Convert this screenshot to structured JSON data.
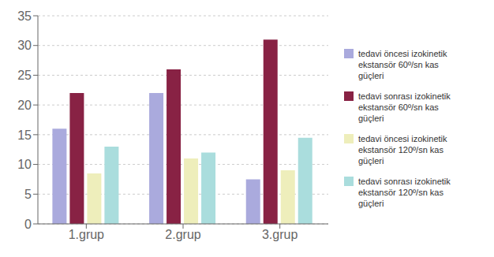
{
  "chart_data": {
    "type": "bar",
    "categories": [
      "1.grup",
      "2.grup",
      "3.grup"
    ],
    "series": [
      {
        "name": "tedavi öncesi izokinetik\nekstansör 60º/sn kas\ngüçleri",
        "color": "#aaaadd",
        "values": [
          16,
          22,
          7.5
        ]
      },
      {
        "name": "tedavi sonrası izokinetik\nekstansör 60º/sn kas\ngüçleri",
        "color": "#882244",
        "values": [
          22,
          26,
          31
        ]
      },
      {
        "name": "tedavi öncesi izokinetik\nekstansör 120º/sn kas\ngüçleri",
        "color": "#eeeebb",
        "values": [
          8.5,
          11,
          9
        ]
      },
      {
        "name": "tedavi sonrası izokinetik\nekstansör 120º/sn kas\ngüçleri",
        "color": "#aadddd",
        "values": [
          13,
          12,
          14.5
        ]
      }
    ],
    "ylim": [
      0,
      35
    ],
    "yticks": [
      0,
      5,
      10,
      15,
      20,
      25,
      30,
      35
    ],
    "grid": true,
    "legend": "right"
  }
}
